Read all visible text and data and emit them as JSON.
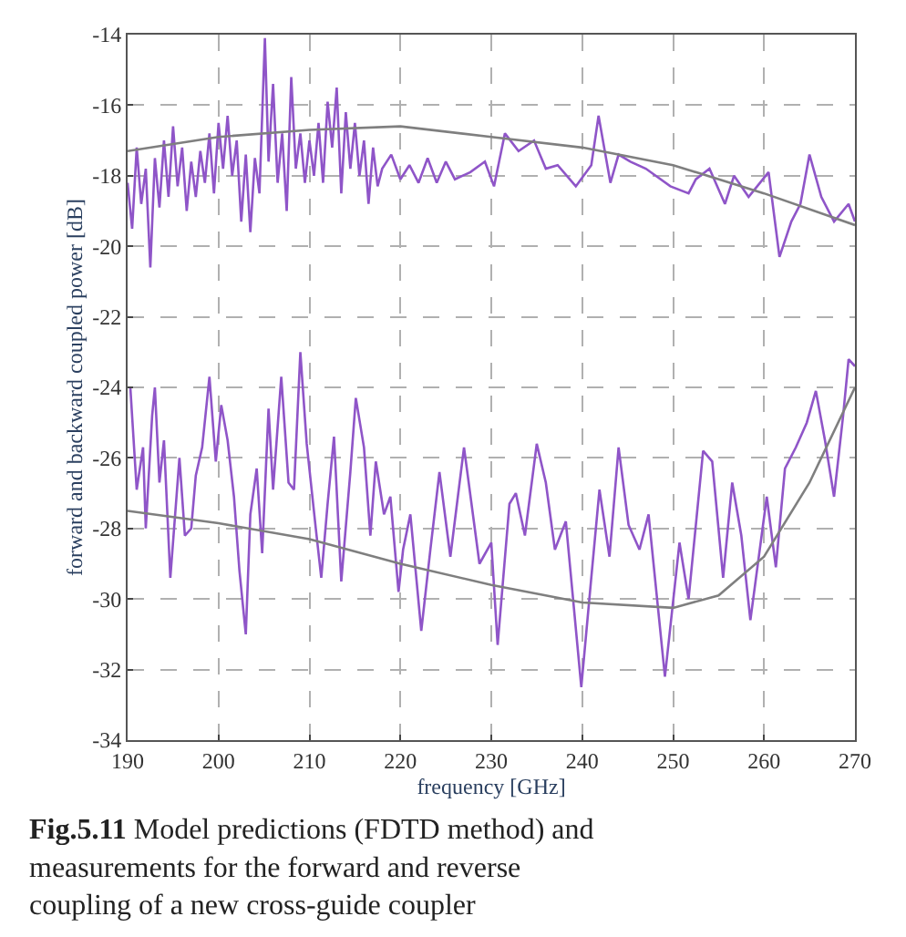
{
  "chart_data": {
    "type": "line",
    "xlabel": "frequency [GHz]",
    "ylabel": "forward and backward coupled power [dB]",
    "xlim": [
      190,
      270
    ],
    "xticks": [
      190,
      200,
      210,
      220,
      230,
      240,
      250,
      260,
      270
    ],
    "ylim": [
      -34,
      -14
    ],
    "yticks": [
      -34,
      -32,
      -30,
      -28,
      -26,
      -24,
      -22,
      -20,
      -18,
      -16,
      -14
    ],
    "grid": true,
    "line_style": "solid",
    "marker": "none",
    "series": [
      {
        "color": "#8f55c8",
        "x": [
          190,
          190.5,
          191,
          191.5,
          192,
          192.5,
          193,
          193.5,
          194,
          194.5,
          195,
          195.5,
          196,
          196.5,
          197,
          197.5,
          198,
          198.5,
          199,
          199.5,
          200,
          200.5,
          201,
          201.5,
          202,
          202.5,
          203,
          203.5,
          204,
          204.5,
          205.1,
          205.5,
          206,
          206.5,
          207,
          207.5,
          208,
          208.5,
          209,
          209.5,
          210,
          210.5,
          211,
          211.5,
          212,
          212.5,
          213,
          213.5,
          214,
          214.5,
          215,
          215.5,
          216,
          216.5,
          217,
          217.5,
          218,
          219,
          220,
          221,
          222,
          223,
          224,
          225,
          226,
          227.7,
          229.3,
          230.3,
          231.5,
          233,
          234.7,
          236,
          237.3,
          239.3,
          241,
          241.8,
          243.1,
          244,
          245.3,
          247,
          249.7,
          251.7,
          252.5,
          254,
          255.7,
          256.7,
          258.3,
          260.5,
          261.7,
          263,
          264,
          265,
          266.3,
          267.7,
          269.3,
          270
        ],
        "values": [
          -18.2,
          -19.5,
          -17.2,
          -18.8,
          -17.8,
          -20.6,
          -17.5,
          -18.9,
          -17,
          -18.6,
          -16.6,
          -18.3,
          -17.2,
          -19,
          -17.6,
          -18.6,
          -17.3,
          -18.2,
          -16.8,
          -18.5,
          -16.5,
          -17.8,
          -16.3,
          -18,
          -17,
          -19.3,
          -17.4,
          -19.6,
          -17.5,
          -18.5,
          -14.1,
          -17.6,
          -15.4,
          -18.2,
          -16.8,
          -19,
          -15.2,
          -17.8,
          -16.8,
          -18.2,
          -17,
          -18,
          -16.5,
          -18.2,
          -15.9,
          -17.2,
          -15.5,
          -18.5,
          -16.2,
          -17.8,
          -16.5,
          -18,
          -17,
          -18.8,
          -17.2,
          -18.3,
          -17.8,
          -17.4,
          -18.1,
          -17.7,
          -18.2,
          -17.5,
          -18.2,
          -17.6,
          -18.1,
          -17.9,
          -17.6,
          -18.3,
          -16.8,
          -17.3,
          -17,
          -17.8,
          -17.7,
          -18.3,
          -17.7,
          -16.3,
          -18.2,
          -17.4,
          -17.6,
          -17.8,
          -18.3,
          -18.5,
          -18.1,
          -17.8,
          -18.8,
          -18,
          -18.6,
          -17.9,
          -20.3,
          -19.3,
          -18.8,
          -17.4,
          -18.6,
          -19.3,
          -18.8,
          -19.3
        ]
      },
      {
        "color": "#7f7f7f",
        "x": [
          190,
          195,
          200,
          210,
          220,
          230,
          240,
          250,
          260,
          270
        ],
        "values": [
          -17.3,
          -17.1,
          -16.9,
          -16.7,
          -16.6,
          -16.9,
          -17.2,
          -17.7,
          -18.5,
          -19.4
        ]
      },
      {
        "color": "#8f55c8",
        "x": [
          190.3,
          191,
          191.7,
          192,
          192.7,
          193,
          193.5,
          194,
          194.7,
          195.7,
          196.3,
          197,
          197.5,
          198.2,
          199,
          199.7,
          200.3,
          201,
          201.7,
          202.3,
          203,
          203.5,
          204.2,
          204.8,
          205.5,
          206,
          206.9,
          207.7,
          208.3,
          209,
          209.7,
          210.7,
          211.3,
          212,
          212.7,
          213.5,
          214.5,
          215.1,
          216,
          216.7,
          217.3,
          218.2,
          218.9,
          219.8,
          220.3,
          221.1,
          222.3,
          223.3,
          224.3,
          225.5,
          227,
          228.7,
          230,
          230.7,
          232,
          232.7,
          233.7,
          235,
          236,
          237,
          238.2,
          239.9,
          241,
          241.9,
          243,
          244,
          245.1,
          246.3,
          247.3,
          249.1,
          250.7,
          251.7,
          253.3,
          254.3,
          255.5,
          256.5,
          257.5,
          258.5,
          260.3,
          261.3,
          262.3,
          263.5,
          264.7,
          265.7,
          266.7,
          267.7,
          268.7,
          269.3,
          270
        ],
        "values": [
          -24,
          -26.9,
          -25.7,
          -28,
          -24.8,
          -24,
          -26.7,
          -25.5,
          -29.4,
          -26,
          -28.2,
          -28,
          -26.5,
          -25.7,
          -23.7,
          -26.1,
          -24.5,
          -25.5,
          -27.1,
          -29.2,
          -31,
          -27.6,
          -26.3,
          -28.7,
          -24.6,
          -26.9,
          -23.7,
          -26.7,
          -26.9,
          -23,
          -25.6,
          -28,
          -29.4,
          -27.3,
          -25.4,
          -29.5,
          -26.4,
          -24.3,
          -25.7,
          -28.2,
          -26.1,
          -27.6,
          -27.1,
          -29.8,
          -28.6,
          -27.6,
          -30.9,
          -28.6,
          -26.4,
          -28.8,
          -25.7,
          -29,
          -28.4,
          -31.3,
          -27.3,
          -27,
          -28.2,
          -25.6,
          -26.7,
          -28.6,
          -27.8,
          -32.5,
          -29.4,
          -26.9,
          -28.8,
          -25.7,
          -27.9,
          -28.6,
          -27.6,
          -32.2,
          -28.4,
          -30,
          -25.8,
          -26.1,
          -29.4,
          -26.7,
          -28.2,
          -30.6,
          -27.1,
          -29.1,
          -26.3,
          -25.7,
          -25,
          -24.1,
          -25.5,
          -27.1,
          -24.8,
          -23.2,
          -23.4
        ]
      },
      {
        "color": "#7f7f7f",
        "x": [
          190,
          200,
          210,
          220,
          230,
          240,
          250,
          255,
          260,
          265,
          270
        ],
        "values": [
          -27.5,
          -27.85,
          -28.3,
          -29,
          -29.6,
          -30.1,
          -30.25,
          -29.9,
          -28.8,
          -26.7,
          -24
        ]
      }
    ],
    "annotations": [
      "Fig.5.11",
      "Model predictions (FDTD method) and measurements for the forward and reverse coupling of a new cross-guide coupler"
    ]
  }
}
